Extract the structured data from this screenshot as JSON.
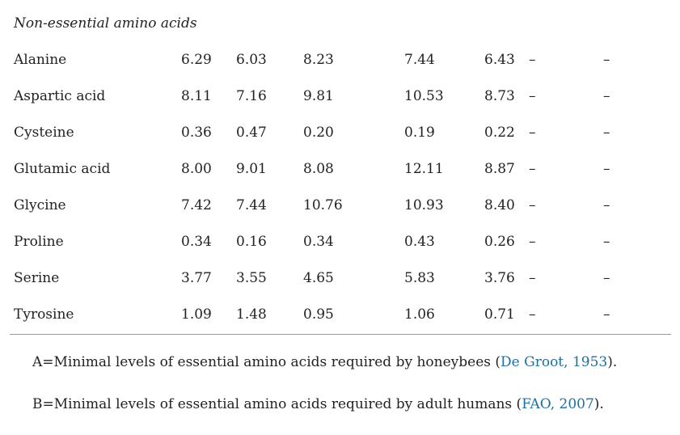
{
  "section_title": "Non-essential amino acids",
  "rows": [
    {
      "name": "Alanine",
      "values": [
        "6.29",
        "6.03",
        "8.23",
        "7.44",
        "6.43",
        "–",
        "–"
      ]
    },
    {
      "name": "Aspartic acid",
      "values": [
        "8.11",
        "7.16",
        "9.81",
        "10.53",
        "8.73",
        "–",
        "–"
      ]
    },
    {
      "name": "Cysteine",
      "values": [
        "0.36",
        "0.47",
        "0.20",
        "0.19",
        "0.22",
        "–",
        "–"
      ]
    },
    {
      "name": "Glutamic acid",
      "values": [
        "8.00",
        "9.01",
        "8.08",
        "12.11",
        "8.87",
        "–",
        "–"
      ]
    },
    {
      "name": "Glycine",
      "values": [
        "7.42",
        "7.44",
        "10.76",
        "10.93",
        "8.40",
        "–",
        "–"
      ]
    },
    {
      "name": "Proline",
      "values": [
        "0.34",
        "0.16",
        "0.34",
        "0.43",
        "0.26",
        "–",
        "–"
      ]
    },
    {
      "name": "Serine",
      "values": [
        "3.77",
        "3.55",
        "4.65",
        "5.83",
        "3.76",
        "–",
        "–"
      ]
    },
    {
      "name": "Tyrosine",
      "values": [
        "1.09",
        "1.48",
        "0.95",
        "1.06",
        "0.71",
        "–",
        "–"
      ]
    }
  ],
  "footnotes": [
    {
      "prefix": "A=Minimal levels of essential amino acids required by honeybees (",
      "link": "De Groot, 1953",
      "suffix": ")."
    },
    {
      "prefix": "B=Minimal levels of essential amino acids required by adult humans (",
      "link": "FAO, 2007",
      "suffix": ")."
    }
  ],
  "colors": {
    "text": "#222222",
    "link": "#1f6f9f",
    "rule": "#9a9a9a"
  }
}
